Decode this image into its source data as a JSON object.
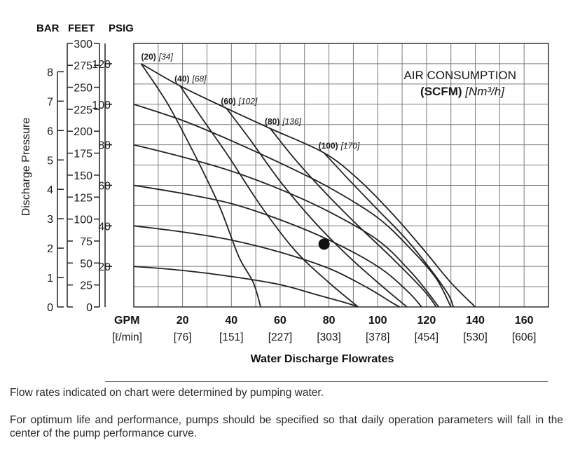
{
  "chart_data": {
    "type": "line",
    "unit_headers": [
      "BAR",
      "FEET",
      "PSIG"
    ],
    "ylabel": "Discharge Pressure",
    "xlabel": "Water Discharge Flowrates",
    "x_unit_top": "GPM",
    "x_unit_bottom": "[ℓ/min]",
    "x_ticks_gpm": [
      "20",
      "40",
      "60",
      "80",
      "100",
      "120",
      "140",
      "160"
    ],
    "x_ticks_lpm": [
      "[76]",
      "[151]",
      "[227]",
      "[303]",
      "[378]",
      "[454]",
      "[530]",
      "[606]"
    ],
    "xlim": [
      0,
      170
    ],
    "y_psig_ticks": [
      "20",
      "40",
      "60",
      "80",
      "100",
      "120"
    ],
    "y_feet_ticks": [
      "0",
      "25",
      "50",
      "75",
      "100",
      "125",
      "150",
      "175",
      "200",
      "225",
      "250",
      "275",
      "300"
    ],
    "y_bar_ticks": [
      "0",
      "1",
      "2",
      "3",
      "4",
      "5",
      "6",
      "7",
      "8"
    ],
    "ylim_psig": [
      0,
      130
    ],
    "grid": true,
    "legend_title_line1": "AIR CONSUMPTION",
    "legend_title_bold": "(SCFM)",
    "legend_title_italic": "[Nm³/h]",
    "air_curves": [
      {
        "label": "(20)",
        "label_metric": "[34]",
        "points": [
          [
            3,
            120
          ],
          [
            14,
            100
          ],
          [
            25,
            75
          ],
          [
            35,
            50
          ],
          [
            43,
            25
          ],
          [
            49,
            12
          ],
          [
            52,
            0
          ]
        ]
      },
      {
        "label": "(40)",
        "label_metric": "[68]",
        "points": [
          [
            19,
            109
          ],
          [
            28,
            93
          ],
          [
            39,
            74
          ],
          [
            52,
            50
          ],
          [
            66,
            28
          ],
          [
            80,
            12
          ],
          [
            92,
            0
          ]
        ]
      },
      {
        "label": "(60)",
        "label_metric": "[102]",
        "points": [
          [
            38,
            98
          ],
          [
            48,
            82
          ],
          [
            60,
            62
          ],
          [
            74,
            42
          ],
          [
            88,
            25
          ],
          [
            102,
            10
          ],
          [
            112,
            0
          ]
        ]
      },
      {
        "label": "(80)",
        "label_metric": "[136]",
        "points": [
          [
            56,
            88
          ],
          [
            66,
            73
          ],
          [
            78,
            57
          ],
          [
            92,
            40
          ],
          [
            106,
            24
          ],
          [
            119,
            8
          ],
          [
            124,
            0
          ]
        ]
      },
      {
        "label": "(100)",
        "label_metric": "[170]",
        "points": [
          [
            78,
            76
          ],
          [
            88,
            63
          ],
          [
            100,
            48
          ],
          [
            112,
            33
          ],
          [
            122,
            18
          ],
          [
            129,
            6
          ],
          [
            131,
            0
          ]
        ]
      }
    ],
    "pressure_curves": [
      {
        "psig": 120,
        "points": [
          [
            3,
            120
          ],
          [
            19,
            109
          ],
          [
            38,
            98
          ],
          [
            56,
            88
          ],
          [
            78,
            76
          ],
          [
            92,
            63
          ],
          [
            106,
            46
          ],
          [
            119,
            28
          ],
          [
            130,
            12
          ],
          [
            140,
            0
          ]
        ]
      },
      {
        "psig": 100,
        "points": [
          [
            0,
            100
          ],
          [
            20,
            92
          ],
          [
            40,
            82
          ],
          [
            60,
            71
          ],
          [
            80,
            59
          ],
          [
            100,
            44
          ],
          [
            114,
            28
          ],
          [
            124,
            14
          ],
          [
            130,
            0
          ]
        ]
      },
      {
        "psig": 80,
        "points": [
          [
            0,
            80
          ],
          [
            20,
            74
          ],
          [
            40,
            67
          ],
          [
            60,
            58
          ],
          [
            80,
            47
          ],
          [
            100,
            33
          ],
          [
            113,
            18
          ],
          [
            120,
            8
          ],
          [
            125,
            0
          ]
        ]
      },
      {
        "psig": 60,
        "points": [
          [
            0,
            60
          ],
          [
            20,
            56
          ],
          [
            40,
            51
          ],
          [
            60,
            43
          ],
          [
            80,
            33
          ],
          [
            100,
            20
          ],
          [
            112,
            8
          ],
          [
            118,
            0
          ]
        ]
      },
      {
        "psig": 40,
        "points": [
          [
            0,
            40
          ],
          [
            20,
            37
          ],
          [
            40,
            33
          ],
          [
            60,
            27
          ],
          [
            80,
            19
          ],
          [
            95,
            10
          ],
          [
            106,
            2
          ],
          [
            109,
            0
          ]
        ]
      },
      {
        "psig": 20,
        "points": [
          [
            0,
            20
          ],
          [
            20,
            18
          ],
          [
            40,
            15
          ],
          [
            60,
            11
          ],
          [
            75,
            6
          ],
          [
            87,
            2
          ],
          [
            92,
            0
          ]
        ]
      }
    ],
    "operating_point": {
      "gpm": 78,
      "psig": 31
    }
  },
  "notes": {
    "line1": "Flow rates indicated on chart were determined by pumping water.",
    "line2": "For optimum life and performance, pumps should be specified so that daily operation parameters will fall in the center of the pump performance curve."
  }
}
